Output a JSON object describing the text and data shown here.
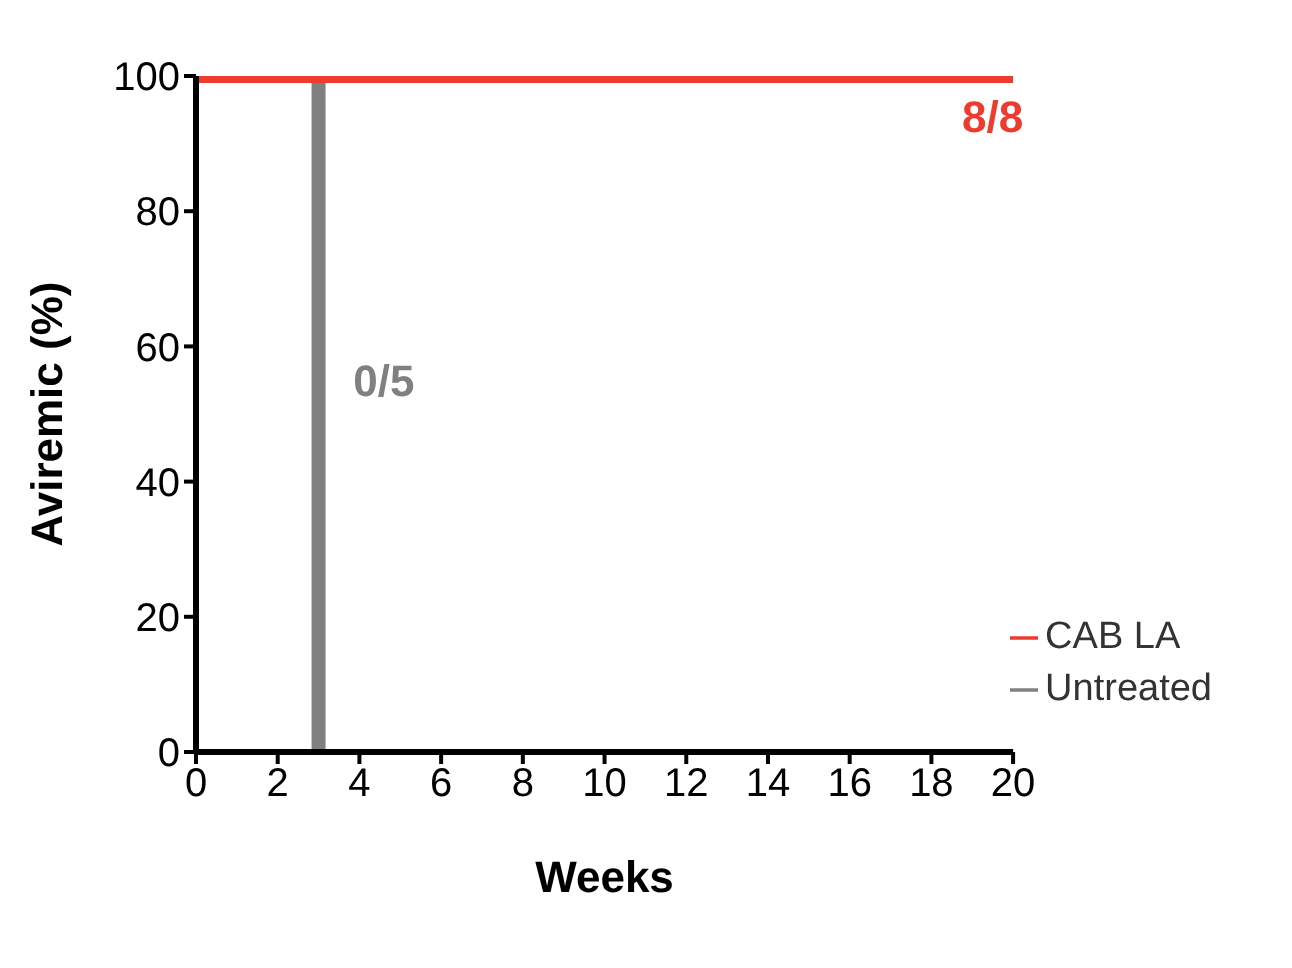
{
  "chart_data": {
    "type": "step",
    "xlabel": "Weeks",
    "ylabel": "Aviremic (%)",
    "series": [
      {
        "name": "CAB LA",
        "color": "#ee3a2f",
        "x": [
          0,
          20
        ],
        "values": [
          100,
          100
        ]
      },
      {
        "name": "Untreated",
        "color": "#808080",
        "x": [
          0,
          3,
          3
        ],
        "values": [
          100,
          100,
          0
        ]
      }
    ],
    "xlim": [
      0,
      20
    ],
    "xticks": [
      0,
      2,
      4,
      6,
      8,
      10,
      12,
      14,
      16,
      18,
      20
    ],
    "ylim": [
      0,
      100
    ],
    "yticks": [
      0,
      20,
      40,
      60,
      80,
      100
    ],
    "annotations": [
      "8/8",
      "0/5"
    ],
    "legend": "bottom right",
    "grid": false,
    "marker": "none",
    "line_style": "solid"
  }
}
